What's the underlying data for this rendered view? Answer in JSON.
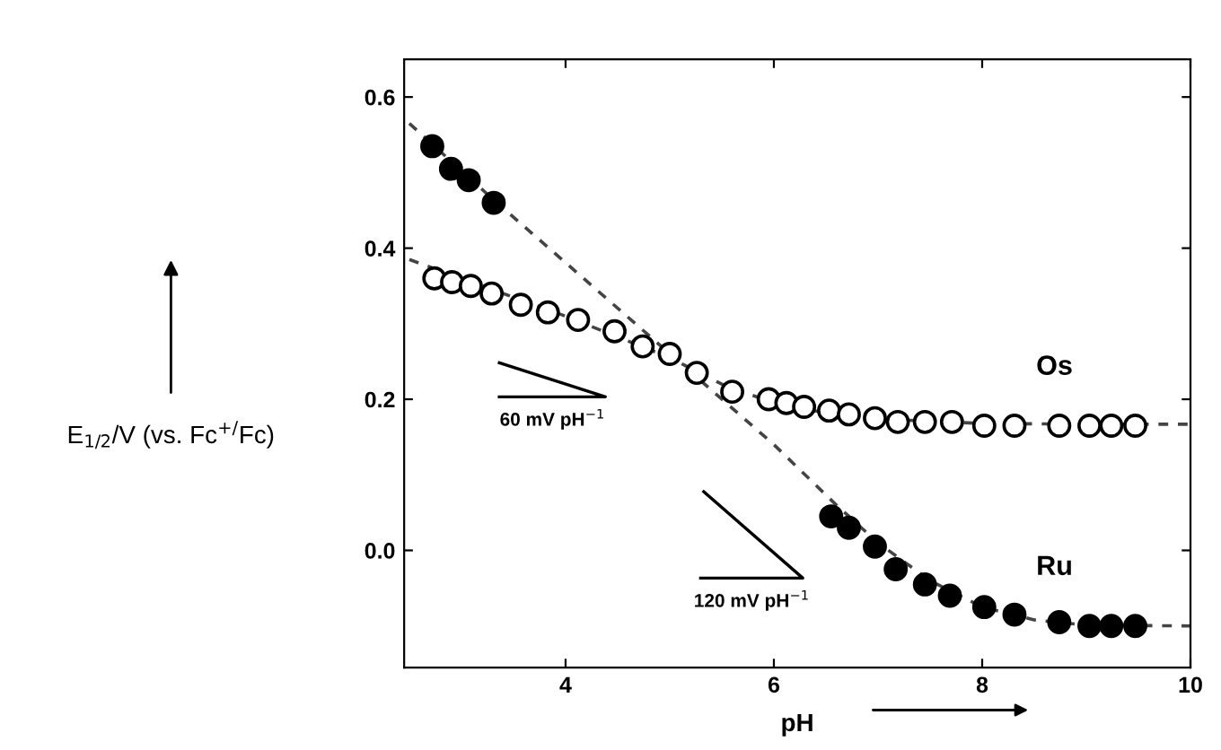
{
  "chart_data": {
    "type": "scatter",
    "xlabel": "pH",
    "ylabel": "E$_{1/2}$/V (vs. Fc$^{+/}$Fc)",
    "xlim": [
      2.45,
      10
    ],
    "ylim": [
      -0.155,
      0.65
    ],
    "xticks": [
      4,
      6,
      8,
      10
    ],
    "yticks": [
      {
        "value": 0,
        "label": "0.0"
      },
      {
        "value": 0.2,
        "label": "0.2"
      },
      {
        "value": 0.4,
        "label": "0.4"
      },
      {
        "value": 0.6,
        "label": "0.6"
      }
    ],
    "grid": false,
    "legend": "right",
    "series": [
      {
        "name": "Os",
        "color": "#ffffff",
        "marker": "circle",
        "x": [
          2.74,
          2.91,
          3.09,
          3.29,
          3.57,
          3.83,
          4.12,
          4.47,
          4.74,
          5.0,
          5.26,
          5.6,
          5.95,
          6.12,
          6.29,
          6.53,
          6.72,
          6.97,
          7.19,
          7.45,
          7.71,
          8.02,
          8.31,
          8.74,
          9.03,
          9.24,
          9.47
        ],
        "values": [
          0.36,
          0.355,
          0.35,
          0.34,
          0.325,
          0.315,
          0.305,
          0.29,
          0.27,
          0.26,
          0.235,
          0.21,
          0.2,
          0.195,
          0.19,
          0.185,
          0.18,
          0.175,
          0.17,
          0.17,
          0.17,
          0.165,
          0.165,
          0.165,
          0.165,
          0.165,
          0.165
        ]
      },
      {
        "name": "Ru",
        "color": "#000000",
        "marker": "circle",
        "x": [
          2.72,
          2.9,
          3.07,
          3.31,
          6.55,
          6.72,
          6.97,
          7.17,
          7.45,
          7.69,
          8.02,
          8.31,
          8.74,
          9.03,
          9.24,
          9.47
        ],
        "values": [
          0.535,
          0.505,
          0.49,
          0.46,
          0.045,
          0.03,
          0.005,
          -0.025,
          -0.045,
          -0.06,
          -0.075,
          -0.085,
          -0.095,
          -0.1,
          -0.1,
          -0.1
        ]
      },
      {
        "type": "line",
        "color": "#444444",
        "line_style": "dashed",
        "x": [
          2.5,
          3,
          4,
          5,
          5.5,
          6,
          6.5,
          7,
          8,
          9,
          10
        ],
        "values": [
          0.385,
          0.36,
          0.31,
          0.255,
          0.22,
          0.195,
          0.182,
          0.174,
          0.168,
          0.167,
          0.167
        ]
      },
      {
        "type": "line",
        "color": "#444444",
        "line_style": "dashed",
        "x": [
          2.5,
          3.3,
          6.0,
          6.6,
          7.0,
          7.5,
          8.0,
          8.5,
          9.0,
          10
        ],
        "values": [
          0.565,
          0.465,
          0.14,
          0.06,
          0.01,
          -0.04,
          -0.075,
          -0.092,
          -0.099,
          -0.1
        ]
      }
    ],
    "annotations": [
      "60 mV pH$^{−1}$",
      "120 mV pH$^{−1}$"
    ]
  }
}
